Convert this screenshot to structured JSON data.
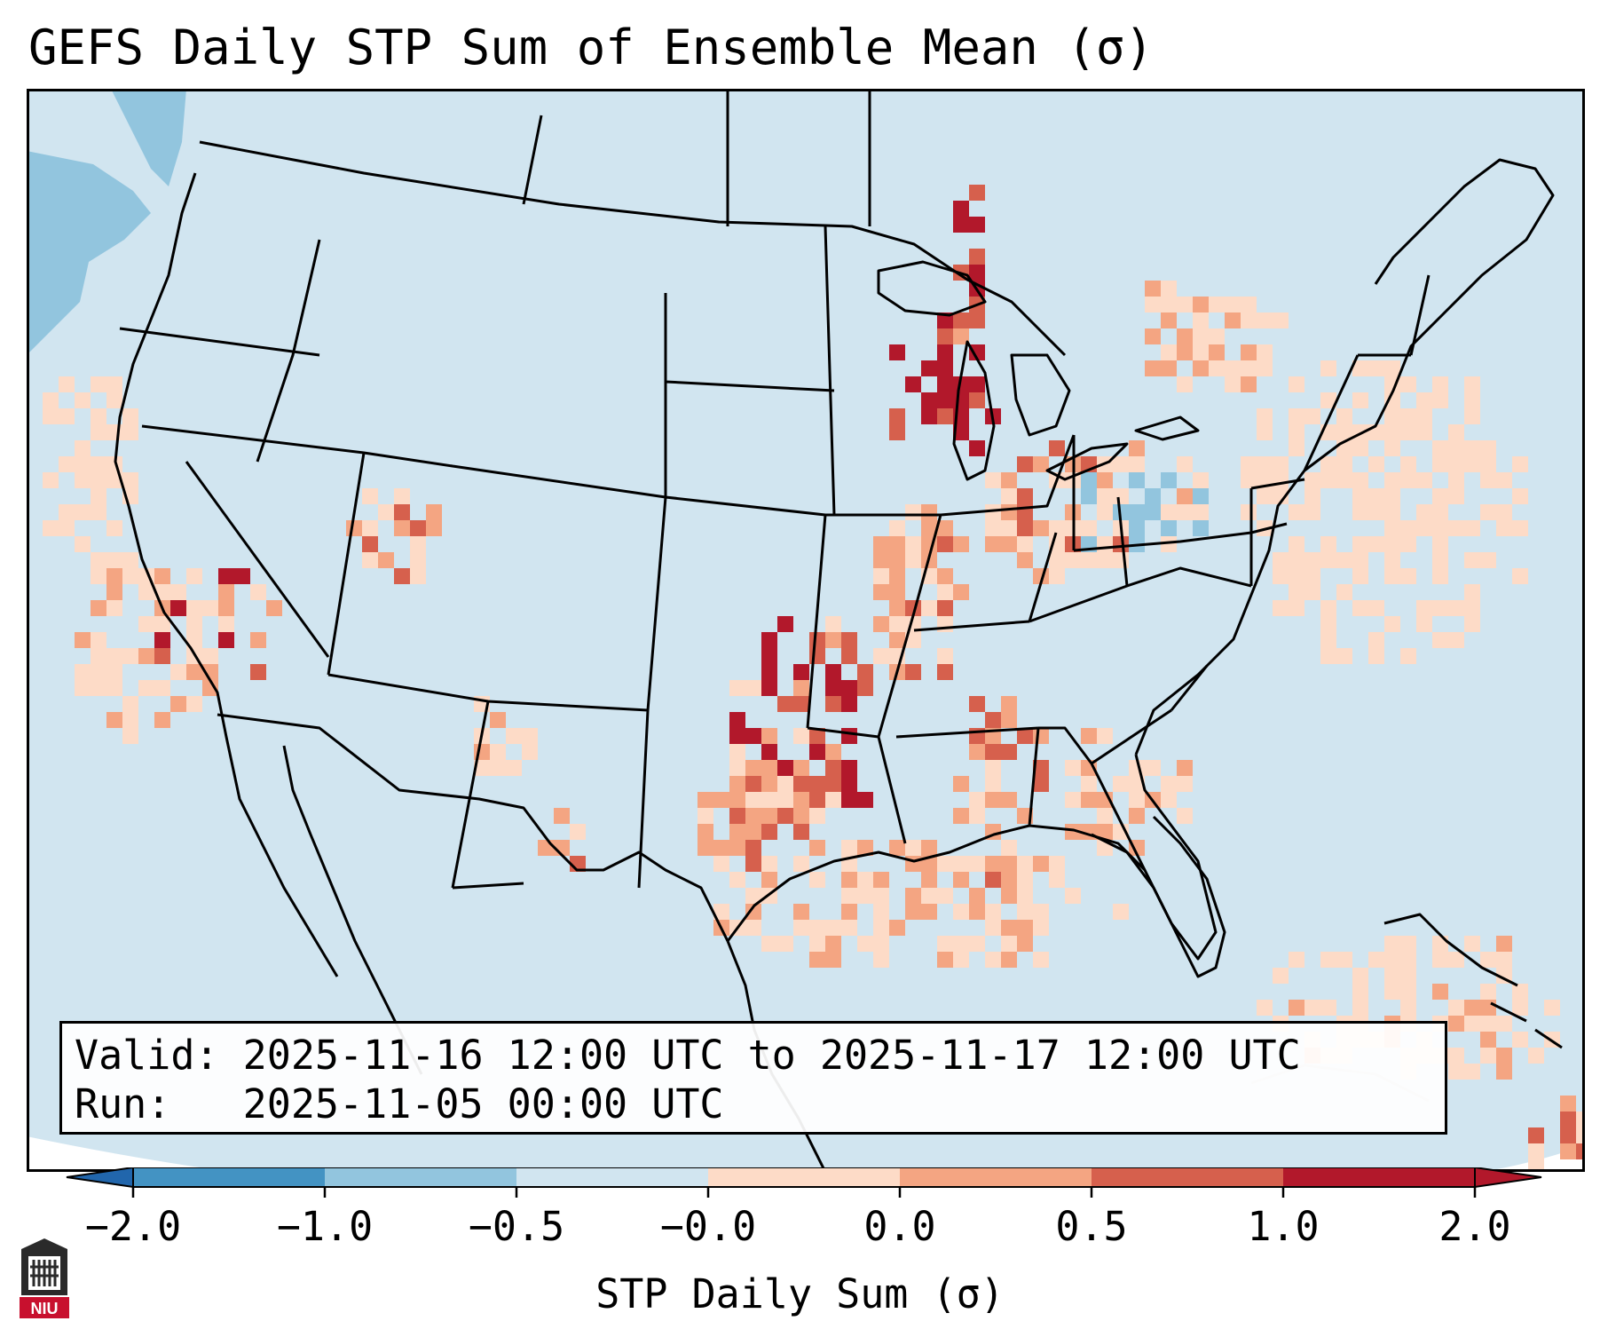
{
  "title": "GEFS Daily STP Sum of Ensemble Mean (σ)",
  "info": {
    "valid_label": "Valid:",
    "valid_value": "2025-11-16 12:00 UTC to 2025-11-17 12:00 UTC",
    "run_label": "Run:",
    "run_value": "2025-11-05 00:00 UTC"
  },
  "colorbar": {
    "label": "STP Daily Sum (σ)",
    "ticks": [
      "−2.0",
      "−1.0",
      "−0.5",
      "−0.0",
      "0.0",
      "0.5",
      "1.0",
      "2.0"
    ],
    "colors": [
      "#4393c3",
      "#92c5de",
      "#d1e5f0",
      "#fddbc7",
      "#f4a582",
      "#d6604d",
      "#b2182b"
    ],
    "under_color": "#2166ac",
    "over_color": "#b2182b"
  },
  "map": {
    "ocean_color": "#d1e5f0",
    "outline_color": "#000000",
    "hotspots": [
      {
        "name": "oklahoma-arkansas-corridor",
        "level": 1.5
      },
      {
        "name": "wisconsin-upper-michigan",
        "level": 1.5
      },
      {
        "name": "nevada-california",
        "level": 1.2
      },
      {
        "name": "mississippi-alabama",
        "level": 0.8
      },
      {
        "name": "gulf-coast",
        "level": 0.3
      },
      {
        "name": "caribbean",
        "level": 0.4
      }
    ]
  },
  "logo": {
    "text": "NIU",
    "color": "#c8102e"
  }
}
